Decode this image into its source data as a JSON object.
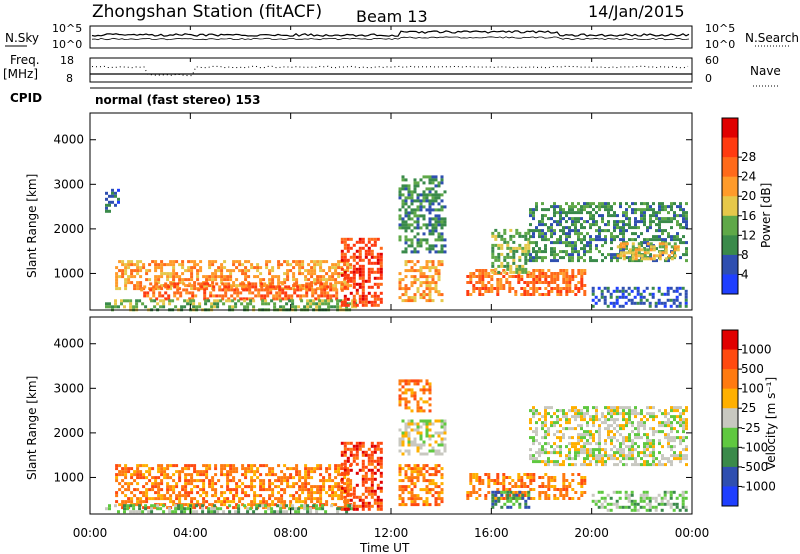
{
  "header": {
    "station": "Zhongshan Station (fitACF)",
    "beam": "Beam 13",
    "date": "14/Jan/2015"
  },
  "noise_panel": {
    "left_label": "N.Sky",
    "right_label": "N.Search",
    "ticks": [
      "10^5",
      "10^0"
    ]
  },
  "freq_panel": {
    "left_label_1": "Freq.",
    "left_label_2": "[MHz]",
    "left_ticks": [
      "18",
      "8"
    ],
    "right_ticks": [
      "60",
      "0"
    ],
    "right_label": "Nave"
  },
  "cpid": {
    "label": "CPID",
    "program": "normal (fast stereo) 153"
  },
  "chart_data": [
    {
      "type": "heatmap",
      "quantity": "Power",
      "colorbar_label": "Power [dB]",
      "ylabel": "Slant Range [km]",
      "xlabel": "Time UT",
      "xlim": [
        0,
        24
      ],
      "ylim": [
        180,
        4600
      ],
      "x_ticks": [
        "00:00",
        "04:00",
        "08:00",
        "12:00",
        "16:00",
        "20:00",
        "00:00"
      ],
      "y_ticks": [
        "1000",
        "2000",
        "3000",
        "4000"
      ],
      "colorbar_ticks": [
        "4",
        "8",
        "12",
        "16",
        "20",
        "24",
        "28"
      ],
      "colorbar_colors": [
        "#1f3fff",
        "#2f4fb0",
        "#3a8a4a",
        "#5fa848",
        "#e6c84a",
        "#ff9b2a",
        "#ff6a1a",
        "#ff3a10",
        "#e00000"
      ],
      "regions": [
        {
          "t0": 0.6,
          "t1": 1.1,
          "r0": 2400,
          "r1": 2900,
          "level": 1
        },
        {
          "t0": 1.0,
          "t1": 10.4,
          "r0": 650,
          "r1": 1300,
          "level": 5
        },
        {
          "t0": 2.0,
          "t1": 9.8,
          "r0": 400,
          "r1": 800,
          "level": 6
        },
        {
          "t0": 0.6,
          "t1": 10.6,
          "r0": 200,
          "r1": 420,
          "level": 3
        },
        {
          "t0": 10.0,
          "t1": 11.6,
          "r0": 300,
          "r1": 1800,
          "level": 7
        },
        {
          "t0": 12.3,
          "t1": 14.0,
          "r0": 400,
          "r1": 1300,
          "level": 5
        },
        {
          "t0": 12.3,
          "t1": 14.2,
          "r0": 1500,
          "r1": 3200,
          "level": 2
        },
        {
          "t0": 15.0,
          "t1": 19.7,
          "r0": 500,
          "r1": 1100,
          "level": 6
        },
        {
          "t0": 16.0,
          "t1": 17.5,
          "r0": 1000,
          "r1": 2000,
          "level": 3
        },
        {
          "t0": 17.5,
          "t1": 23.8,
          "r0": 1300,
          "r1": 2600,
          "level": 2
        },
        {
          "t0": 21.0,
          "t1": 23.5,
          "r0": 1300,
          "r1": 1700,
          "level": 4
        },
        {
          "t0": 20.0,
          "t1": 23.8,
          "r0": 250,
          "r1": 700,
          "level": 1
        }
      ]
    },
    {
      "type": "heatmap",
      "quantity": "Velocity",
      "colorbar_label": "Velocity [m s⁻¹]",
      "ylabel": "Slant Range [km]",
      "xlabel": "Time UT",
      "xlim": [
        0,
        24
      ],
      "ylim": [
        180,
        4600
      ],
      "x_ticks": [
        "00:00",
        "04:00",
        "08:00",
        "12:00",
        "16:00",
        "20:00",
        "00:00"
      ],
      "y_ticks": [
        "1000",
        "2000",
        "3000",
        "4000"
      ],
      "colorbar_ticks": [
        "1000",
        "500",
        "100",
        "25",
        "-25",
        "-100",
        "-500",
        "-1000"
      ],
      "colorbar_colors": [
        "#1f3fff",
        "#2f4fb0",
        "#3a8a4a",
        "#5fc840",
        "#c8c8c0",
        "#ffb000",
        "#ff7a10",
        "#ff4a10",
        "#e00000"
      ],
      "regions": [
        {
          "t0": 1.0,
          "t1": 10.4,
          "r0": 350,
          "r1": 1300,
          "level": 6
        },
        {
          "t0": 0.6,
          "t1": 10.6,
          "r0": 200,
          "r1": 400,
          "level": 3
        },
        {
          "t0": 10.0,
          "t1": 11.6,
          "r0": 300,
          "r1": 1800,
          "level": 7
        },
        {
          "t0": 12.3,
          "t1": 14.0,
          "r0": 400,
          "r1": 1300,
          "level": 6
        },
        {
          "t0": 12.3,
          "t1": 13.5,
          "r0": 2500,
          "r1": 3200,
          "level": 6
        },
        {
          "t0": 12.3,
          "t1": 14.2,
          "r0": 1500,
          "r1": 2300,
          "level": 4
        },
        {
          "t0": 15.0,
          "t1": 19.7,
          "r0": 500,
          "r1": 1100,
          "level": 6
        },
        {
          "t0": 16.0,
          "t1": 17.5,
          "r0": 300,
          "r1": 700,
          "level": 2
        },
        {
          "t0": 17.5,
          "t1": 23.8,
          "r0": 1300,
          "r1": 2600,
          "level": 4
        },
        {
          "t0": 20.0,
          "t1": 23.8,
          "r0": 250,
          "r1": 700,
          "level": 3
        }
      ]
    }
  ]
}
